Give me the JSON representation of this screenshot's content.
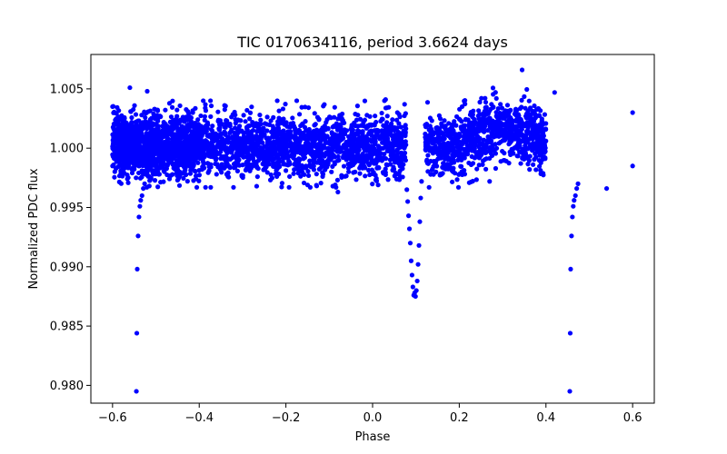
{
  "chart_data": {
    "type": "scatter",
    "title": "TIC 0170634116, period 3.6624 days",
    "xlabel": "Phase",
    "ylabel": "Normalized PDC flux",
    "xlim": [
      -0.65,
      0.65
    ],
    "ylim": [
      0.9785,
      1.0079
    ],
    "xticks": [
      -0.6,
      -0.4,
      -0.2,
      0.0,
      0.2,
      0.4,
      0.6
    ],
    "xtick_labels": [
      "−0.6",
      "−0.4",
      "−0.2",
      "0.0",
      "0.2",
      "0.4",
      "0.6"
    ],
    "yticks": [
      0.98,
      0.985,
      0.99,
      0.995,
      1.0,
      1.005
    ],
    "ytick_labels": [
      "0.980",
      "0.985",
      "0.990",
      "0.995",
      "1.000",
      "1.005"
    ],
    "grid": false,
    "marker_color": "#0000ff",
    "series": [
      {
        "points": [
          [
            -0.545,
            0.9795
          ],
          [
            -0.544,
            0.9844
          ],
          [
            -0.543,
            0.9898
          ],
          [
            -0.541,
            0.9926
          ],
          [
            -0.539,
            0.9942
          ],
          [
            -0.537,
            0.9951
          ],
          [
            -0.535,
            0.9956
          ],
          [
            -0.532,
            0.996
          ],
          [
            -0.529,
            0.9966
          ],
          [
            -0.526,
            0.997
          ],
          [
            0.455,
            0.9795
          ],
          [
            0.456,
            0.9844
          ],
          [
            0.457,
            0.9898
          ],
          [
            0.459,
            0.9926
          ],
          [
            0.461,
            0.9942
          ],
          [
            0.463,
            0.9951
          ],
          [
            0.465,
            0.9956
          ],
          [
            0.468,
            0.996
          ],
          [
            0.471,
            0.9966
          ],
          [
            0.474,
            0.997
          ],
          [
            0.079,
            0.9965
          ],
          [
            0.081,
            0.9955
          ],
          [
            0.083,
            0.9943
          ],
          [
            0.085,
            0.9932
          ],
          [
            0.087,
            0.992
          ],
          [
            0.089,
            0.9905
          ],
          [
            0.091,
            0.9893
          ],
          [
            0.093,
            0.9883
          ],
          [
            0.095,
            0.9876
          ],
          [
            0.097,
            0.9878
          ],
          [
            0.099,
            0.9875
          ],
          [
            0.101,
            0.988
          ],
          [
            0.103,
            0.9888
          ],
          [
            0.105,
            0.9902
          ],
          [
            0.107,
            0.9918
          ],
          [
            0.109,
            0.9938
          ],
          [
            0.111,
            0.9958
          ],
          [
            0.113,
            0.9972
          ],
          [
            -0.6,
            0.9985
          ],
          [
            -0.6,
            1.0035
          ],
          [
            0.6,
            0.9985
          ],
          [
            0.6,
            1.003
          ],
          [
            0.345,
            1.0066
          ],
          [
            -0.52,
            1.0048
          ],
          [
            -0.56,
            1.0051
          ],
          [
            0.42,
            1.0047
          ],
          [
            -0.08,
            0.9963
          ],
          [
            -0.15,
            0.9969
          ],
          [
            -0.36,
            0.9978
          ],
          [
            0.27,
            0.9972
          ],
          [
            0.54,
            0.9966
          ],
          [
            -0.45,
            0.9973
          ],
          [
            0.03,
            1.0041
          ],
          [
            -0.22,
            1.004
          ]
        ]
      }
    ]
  }
}
